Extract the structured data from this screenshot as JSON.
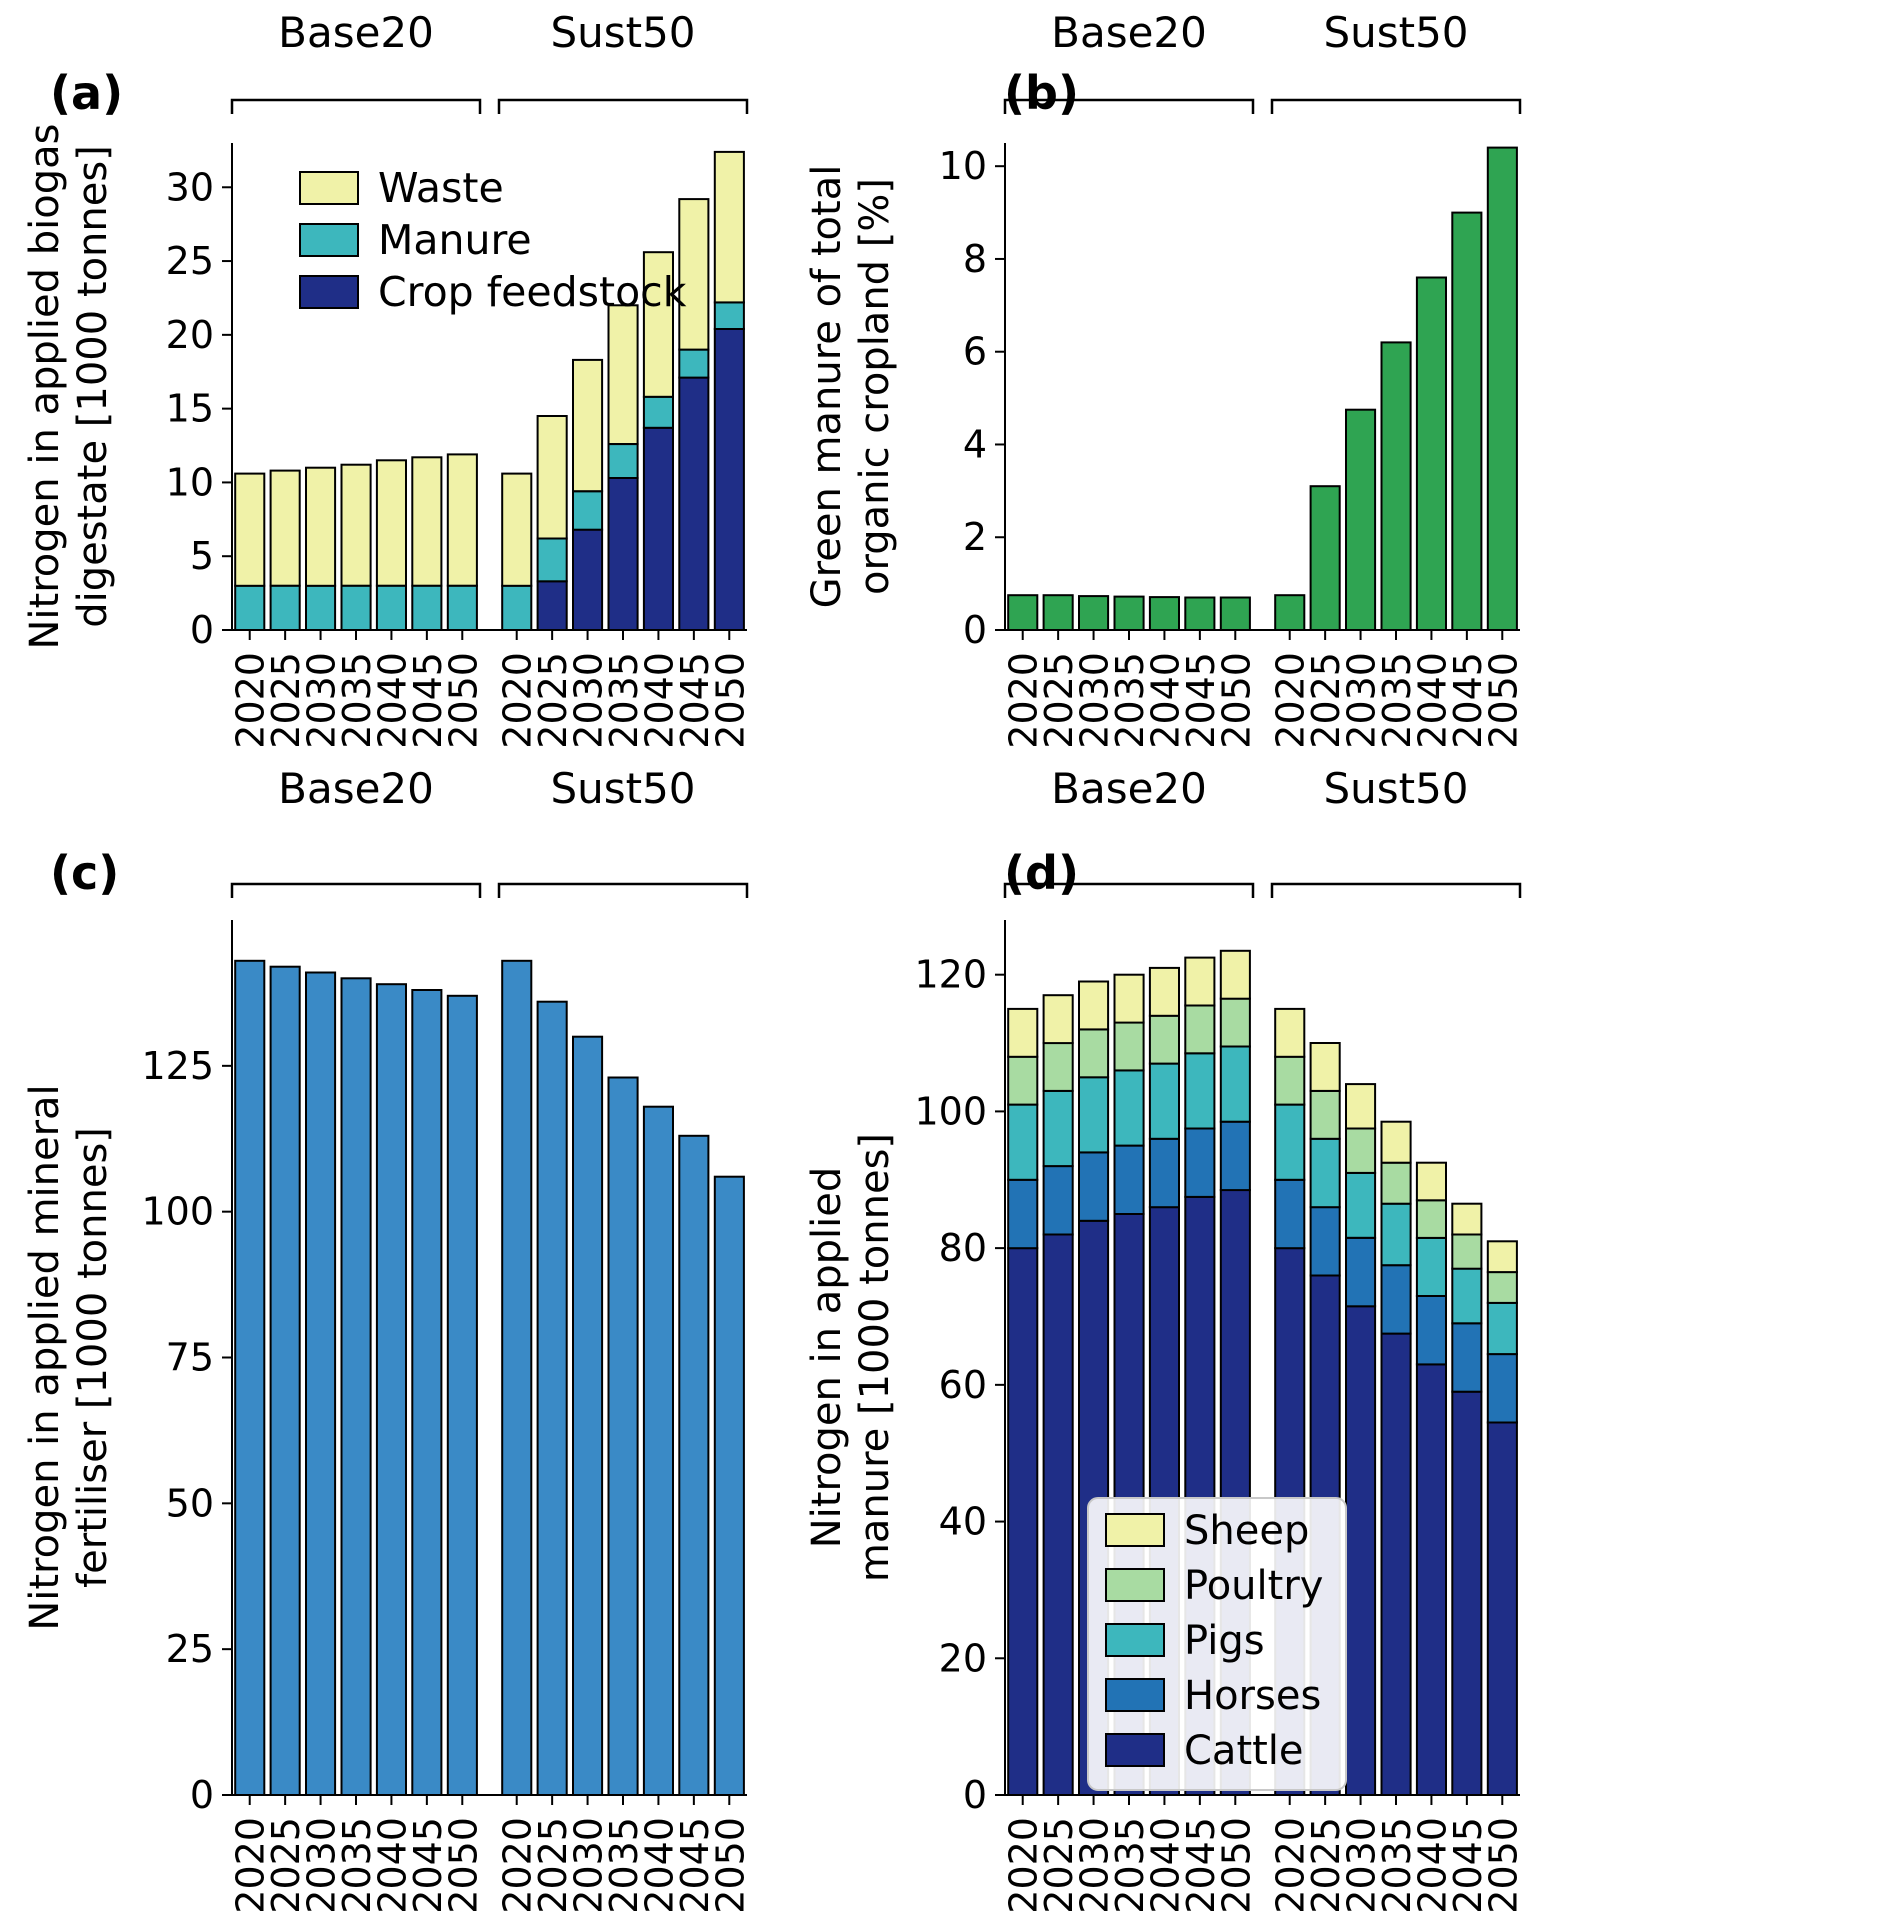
{
  "figure": {
    "background": "#ffffff",
    "axis_color": "#000000",
    "group_labels": [
      "Base20",
      "Sust50"
    ],
    "years": [
      "2020",
      "2025",
      "2030",
      "2035",
      "2040",
      "2045",
      "2050"
    ]
  },
  "chart_data": [
    {
      "id": "a",
      "type": "bar",
      "stacked": true,
      "letter": "(a)",
      "ylabel_lines": [
        "Nitrogen in applied biogas",
        "digestate [1000 tonnes]"
      ],
      "ylim": [
        0,
        33
      ],
      "yticks": [
        0,
        5,
        10,
        15,
        20,
        25,
        30
      ],
      "legend": {
        "show": true,
        "entries": [
          "Waste",
          "Manure",
          "Crop feedstock"
        ]
      },
      "series": [
        {
          "name": "Crop feedstock",
          "color": "#1f2e87",
          "values": [
            [
              0,
              0,
              0,
              0,
              0,
              0,
              0
            ],
            [
              0,
              3.3,
              6.8,
              10.3,
              13.7,
              17.1,
              20.4
            ]
          ]
        },
        {
          "name": "Manure",
          "color": "#3db7bd",
          "values": [
            [
              3,
              3,
              3,
              3,
              3,
              3,
              3
            ],
            [
              3,
              2.9,
              2.6,
              2.3,
              2.1,
              1.9,
              1.8
            ]
          ]
        },
        {
          "name": "Waste",
          "color": "#f0f2a8",
          "values": [
            [
              7.6,
              7.8,
              8,
              8.2,
              8.5,
              8.7,
              8.9
            ],
            [
              7.6,
              8.3,
              8.9,
              9.4,
              9.8,
              10.2,
              10.2
            ]
          ]
        }
      ]
    },
    {
      "id": "b",
      "type": "bar",
      "stacked": false,
      "letter": "(b)",
      "ylabel_lines": [
        "Green manure of total",
        "organic cropland [%]"
      ],
      "ylim": [
        0,
        10.5
      ],
      "yticks": [
        0,
        2,
        4,
        6,
        8,
        10
      ],
      "legend": {
        "show": false,
        "entries": []
      },
      "series": [
        {
          "name": "Green manure share",
          "color": "#2fa452",
          "values": [
            [
              0.75,
              0.75,
              0.73,
              0.72,
              0.71,
              0.7,
              0.7
            ],
            [
              0.75,
              3.1,
              4.75,
              6.2,
              7.6,
              9,
              10.4
            ]
          ]
        }
      ]
    },
    {
      "id": "c",
      "type": "bar",
      "stacked": false,
      "letter": "(c)",
      "ylabel_lines": [
        "Nitrogen in applied mineral",
        "fertiliser [1000 tonnes]"
      ],
      "ylim": [
        0,
        150
      ],
      "yticks": [
        0,
        25,
        50,
        75,
        100,
        125
      ],
      "legend": {
        "show": false,
        "entries": []
      },
      "series": [
        {
          "name": "Mineral fertiliser",
          "color": "#3a8ac6",
          "values": [
            [
              143,
              142,
              141,
              140,
              139,
              138,
              137
            ],
            [
              143,
              136,
              130,
              123,
              118,
              113,
              106
            ]
          ]
        }
      ]
    },
    {
      "id": "d",
      "type": "bar",
      "stacked": true,
      "letter": "(d)",
      "ylabel_lines": [
        "Nitrogen in applied",
        "manure [1000 tonnes]"
      ],
      "ylim": [
        0,
        128
      ],
      "yticks": [
        0,
        20,
        40,
        60,
        80,
        100,
        120
      ],
      "legend": {
        "show": true,
        "entries": [
          "Sheep",
          "Poultry",
          "Pigs",
          "Horses",
          "Cattle"
        ]
      },
      "series": [
        {
          "name": "Cattle",
          "color": "#1f2e87",
          "values": [
            [
              80,
              82,
              84,
              85,
              86,
              87.5,
              88.5
            ],
            [
              80,
              76,
              71.5,
              67.5,
              63,
              59,
              54.5
            ]
          ]
        },
        {
          "name": "Horses",
          "color": "#2273b5",
          "values": [
            [
              10,
              10,
              10,
              10,
              10,
              10,
              10
            ],
            [
              10,
              10,
              10,
              10,
              10,
              10,
              10
            ]
          ]
        },
        {
          "name": "Pigs",
          "color": "#3db7bd",
          "values": [
            [
              11,
              11,
              11,
              11,
              11,
              11,
              11
            ],
            [
              11,
              10,
              9.5,
              9,
              8.5,
              8,
              7.5
            ]
          ]
        },
        {
          "name": "Poultry",
          "color": "#a8dba2",
          "values": [
            [
              7,
              7,
              7,
              7,
              7,
              7,
              7
            ],
            [
              7,
              7,
              6.5,
              6,
              5.5,
              5,
              4.5
            ]
          ]
        },
        {
          "name": "Sheep",
          "color": "#f0f2a8",
          "values": [
            [
              7,
              7,
              7,
              7,
              7,
              7,
              7
            ],
            [
              7,
              7,
              6.5,
              6,
              5.5,
              4.5,
              4.5
            ]
          ]
        }
      ]
    }
  ]
}
